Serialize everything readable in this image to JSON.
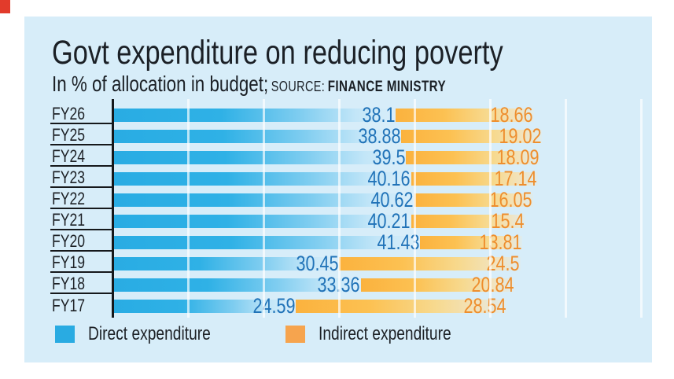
{
  "header": {
    "title": "Govt expenditure on reducing poverty",
    "subtitle_main": "In % of allocation in budget;",
    "source_label": "SOURCE:",
    "source_value": "FINANCE MINISTRY"
  },
  "chart_data": {
    "type": "bar",
    "orientation": "horizontal",
    "stacked": true,
    "unit": "% of allocation in budget",
    "categories": [
      "FY26",
      "FY25",
      "FY24",
      "FY23",
      "FY22",
      "FY21",
      "FY20",
      "FY19",
      "FY18",
      "FY17"
    ],
    "series": [
      {
        "name": "Direct expenditure",
        "color": "#29abe2",
        "values": [
          38.1,
          38.88,
          39.5,
          40.16,
          40.62,
          40.21,
          41.43,
          30.45,
          33.36,
          24.59
        ]
      },
      {
        "name": "Indirect expenditure",
        "color": "#f6a44e",
        "values": [
          18.66,
          19.02,
          18.09,
          17.14,
          16.05,
          15.4,
          13.81,
          24.5,
          20.84,
          28.54
        ]
      }
    ],
    "value_labels_shown": true,
    "gridlines": {
      "interval": 10,
      "count": 7,
      "color": "#ffffff"
    },
    "legend_position": "bottom"
  },
  "colors": {
    "card_background": "#d7edf9",
    "direct_bar": "#29ace3",
    "indirect_bar": "#fbb23e",
    "direct_value_text": "#2173b8",
    "indirect_value_text": "#ee8e2d",
    "text_dark": "#1d2126",
    "axis": "#15181b",
    "corner_mark": "#e23b2b"
  }
}
